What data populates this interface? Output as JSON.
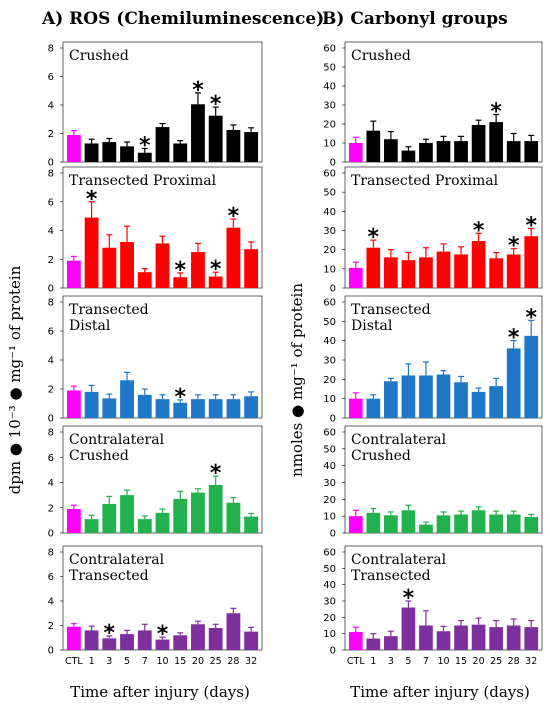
{
  "figure": {
    "panel_a_title": "A) ROS (Chemiluminescence)",
    "panel_b_title": "B) Carbonyl groups",
    "panel_a_ylabel": "dpm ● 10⁻³ ● mg⁻¹ of protein",
    "panel_b_ylabel": "nmoles ● mg⁻¹ of protein",
    "xlabel": "Time after injury (days)",
    "significance_marker": "*",
    "colors": {
      "control": "#ff00ff",
      "crushed": "#000000",
      "transected_proximal": "#ff0000",
      "transected_distal": "#1f77c8",
      "contralateral_crushed": "#22b14c",
      "contralateral_transected": "#7e2f9e"
    }
  },
  "chart_data": [
    {
      "id": "a1",
      "type": "bar",
      "panel": "A",
      "title": "Crushed",
      "color_key": "crushed",
      "categories": [
        "CTL",
        "1",
        "3",
        "5",
        "7",
        "10",
        "15",
        "20",
        "25",
        "28",
        "32"
      ],
      "values": [
        1.9,
        1.3,
        1.4,
        1.1,
        0.65,
        2.45,
        1.3,
        4.05,
        3.25,
        2.25,
        2.1
      ],
      "errors": [
        0.3,
        0.3,
        0.25,
        0.3,
        0.3,
        0.25,
        0.2,
        0.8,
        0.6,
        0.35,
        0.3
      ],
      "significant": [
        false,
        false,
        false,
        false,
        true,
        false,
        false,
        true,
        true,
        false,
        false
      ],
      "ylim": [
        0,
        8
      ],
      "yticks": [
        0,
        2,
        4,
        6,
        8
      ]
    },
    {
      "id": "a2",
      "type": "bar",
      "panel": "A",
      "title": "Transected Proximal",
      "color_key": "transected_proximal",
      "categories": [
        "CTL",
        "1",
        "3",
        "5",
        "7",
        "10",
        "15",
        "20",
        "25",
        "28",
        "32"
      ],
      "values": [
        1.9,
        4.9,
        2.8,
        3.2,
        1.1,
        3.1,
        0.75,
        2.5,
        0.8,
        4.2,
        2.7
      ],
      "errors": [
        0.3,
        1.1,
        0.9,
        1.1,
        0.25,
        0.5,
        0.3,
        0.6,
        0.3,
        0.6,
        0.5
      ],
      "significant": [
        false,
        true,
        false,
        false,
        false,
        false,
        true,
        false,
        true,
        true,
        false
      ],
      "ylim": [
        0,
        8
      ],
      "yticks": [
        0,
        2,
        4,
        6,
        8
      ]
    },
    {
      "id": "a3",
      "type": "bar",
      "panel": "A",
      "title": "Transected Distal",
      "color_key": "transected_distal",
      "categories": [
        "CTL",
        "1",
        "3",
        "5",
        "7",
        "10",
        "15",
        "20",
        "25",
        "28",
        "32"
      ],
      "values": [
        1.9,
        1.8,
        1.35,
        2.6,
        1.6,
        1.3,
        1.05,
        1.3,
        1.3,
        1.3,
        1.5
      ],
      "errors": [
        0.3,
        0.45,
        0.3,
        0.55,
        0.4,
        0.3,
        0.2,
        0.3,
        0.3,
        0.3,
        0.3
      ],
      "significant": [
        false,
        false,
        false,
        false,
        false,
        false,
        true,
        false,
        false,
        false,
        false
      ],
      "ylim": [
        0,
        8
      ],
      "yticks": [
        0,
        2,
        4,
        6,
        8
      ]
    },
    {
      "id": "a4",
      "type": "bar",
      "panel": "A",
      "title": "Contralateral Crushed",
      "color_key": "contralateral_crushed",
      "categories": [
        "CTL",
        "1",
        "3",
        "5",
        "7",
        "10",
        "15",
        "20",
        "25",
        "28",
        "32"
      ],
      "values": [
        1.9,
        1.1,
        2.3,
        3.0,
        1.1,
        1.6,
        2.7,
        3.2,
        3.8,
        2.4,
        1.3
      ],
      "errors": [
        0.3,
        0.3,
        0.6,
        0.4,
        0.25,
        0.3,
        0.6,
        0.3,
        0.7,
        0.4,
        0.25
      ],
      "significant": [
        false,
        false,
        false,
        false,
        false,
        false,
        false,
        false,
        true,
        false,
        false
      ],
      "ylim": [
        0,
        8
      ],
      "yticks": [
        0,
        2,
        4,
        6,
        8
      ]
    },
    {
      "id": "a5",
      "type": "bar",
      "panel": "A",
      "title": "Contralateral Transected",
      "color_key": "contralateral_transected",
      "categories": [
        "CTL",
        "1",
        "3",
        "5",
        "7",
        "10",
        "15",
        "20",
        "25",
        "28",
        "32"
      ],
      "values": [
        1.9,
        1.6,
        0.95,
        1.3,
        1.6,
        0.85,
        1.2,
        2.1,
        1.8,
        3.0,
        1.5
      ],
      "errors": [
        0.25,
        0.35,
        0.2,
        0.3,
        0.5,
        0.2,
        0.2,
        0.25,
        0.3,
        0.4,
        0.35
      ],
      "significant": [
        false,
        false,
        true,
        false,
        false,
        true,
        false,
        false,
        false,
        false,
        false
      ],
      "ylim": [
        0,
        8
      ],
      "yticks": [
        0,
        2,
        4,
        6,
        8
      ]
    },
    {
      "id": "b1",
      "type": "bar",
      "panel": "B",
      "title": "Crushed",
      "color_key": "crushed",
      "categories": [
        "CTL",
        "1",
        "3",
        "5",
        "7",
        "10",
        "15",
        "20",
        "25",
        "28",
        "32"
      ],
      "values": [
        10,
        16.5,
        12,
        6,
        10,
        11,
        11,
        19.5,
        21,
        11,
        11
      ],
      "errors": [
        3,
        5,
        4,
        2,
        2,
        2.5,
        2.5,
        2.5,
        4,
        4,
        3
      ],
      "significant": [
        false,
        false,
        false,
        false,
        false,
        false,
        false,
        false,
        true,
        false,
        false
      ],
      "ylim": [
        0,
        60
      ],
      "yticks": [
        0,
        10,
        20,
        30,
        40,
        50,
        60
      ]
    },
    {
      "id": "b2",
      "type": "bar",
      "panel": "B",
      "title": "Transected Proximal",
      "color_key": "transected_proximal",
      "categories": [
        "CTL",
        "1",
        "3",
        "5",
        "7",
        "10",
        "15",
        "20",
        "25",
        "28",
        "32"
      ],
      "values": [
        10.5,
        21,
        16,
        14.5,
        16,
        19,
        17.5,
        24.5,
        15.5,
        17.5,
        27
      ],
      "errors": [
        3,
        4,
        4,
        4,
        5,
        4,
        4,
        4,
        3,
        3,
        4
      ],
      "significant": [
        false,
        true,
        false,
        false,
        false,
        false,
        false,
        true,
        false,
        true,
        true
      ],
      "ylim": [
        0,
        60
      ],
      "yticks": [
        0,
        10,
        20,
        30,
        40,
        50,
        60
      ]
    },
    {
      "id": "b3",
      "type": "bar",
      "panel": "B",
      "title": "Transected Distal",
      "color_key": "transected_distal",
      "categories": [
        "CTL",
        "1",
        "3",
        "5",
        "7",
        "10",
        "15",
        "20",
        "25",
        "28",
        "32"
      ],
      "values": [
        10,
        10,
        19,
        22,
        22,
        22.5,
        18.5,
        13.5,
        16.5,
        36,
        42.5
      ],
      "errors": [
        3,
        2,
        1.5,
        6,
        7,
        2,
        3,
        2,
        4,
        4,
        8
      ],
      "significant": [
        false,
        false,
        false,
        false,
        false,
        false,
        false,
        false,
        false,
        true,
        true
      ],
      "ylim": [
        0,
        60
      ],
      "yticks": [
        0,
        10,
        20,
        30,
        40,
        50,
        60
      ]
    },
    {
      "id": "b4",
      "type": "bar",
      "panel": "B",
      "title": "Contralateral Crushed",
      "color_key": "contralateral_crushed",
      "categories": [
        "CTL",
        "1",
        "3",
        "5",
        "7",
        "10",
        "15",
        "20",
        "25",
        "28",
        "32"
      ],
      "values": [
        10,
        12,
        10.5,
        13.5,
        5,
        10.5,
        11,
        13.5,
        11,
        11,
        9.5
      ],
      "errors": [
        3.5,
        2.5,
        2,
        3,
        1.5,
        2,
        2,
        2,
        2,
        2,
        1.5
      ],
      "significant": [
        false,
        false,
        false,
        false,
        false,
        false,
        false,
        false,
        false,
        false,
        false
      ],
      "ylim": [
        0,
        60
      ],
      "yticks": [
        0,
        10,
        20,
        30,
        40,
        50,
        60
      ]
    },
    {
      "id": "b5",
      "type": "bar",
      "panel": "B",
      "title": "Contralateral Transected",
      "color_key": "contralateral_transected",
      "categories": [
        "CTL",
        "1",
        "3",
        "5",
        "7",
        "10",
        "15",
        "20",
        "25",
        "28",
        "32"
      ],
      "values": [
        11,
        7,
        8.5,
        26,
        15,
        11.5,
        15,
        15.5,
        14,
        15,
        14
      ],
      "errors": [
        3,
        3,
        3,
        4,
        9,
        3,
        3,
        4,
        4,
        4,
        4
      ],
      "significant": [
        false,
        false,
        false,
        true,
        false,
        false,
        false,
        false,
        false,
        false,
        false
      ],
      "ylim": [
        0,
        60
      ],
      "yticks": [
        0,
        10,
        20,
        30,
        40,
        50,
        60
      ]
    }
  ]
}
